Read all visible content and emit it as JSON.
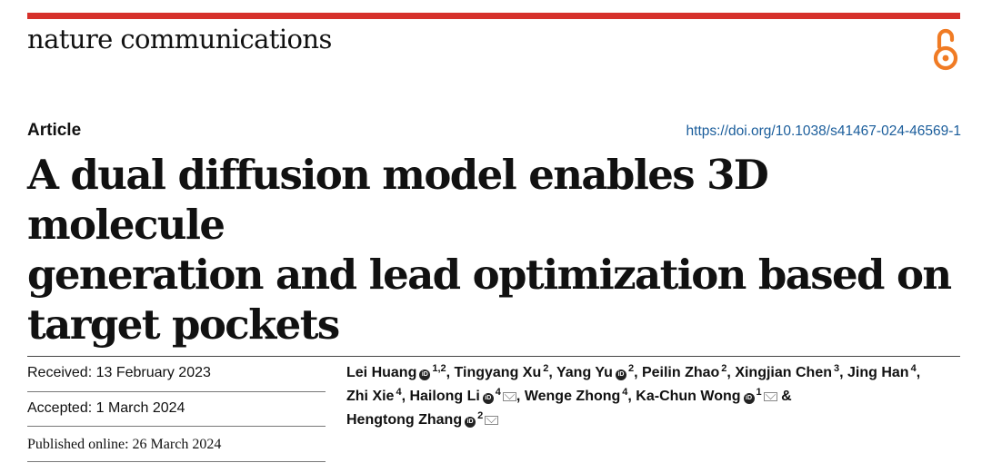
{
  "header": {
    "journal": "nature communications",
    "accent_color": "#d6312b",
    "open_access_icon": "open-access-icon",
    "open_access_color": "#f07b24"
  },
  "article": {
    "type": "Article",
    "doi": "https://doi.org/10.1038/s41467-024-46569-1",
    "title_lines": [
      "A dual diffusion model enables 3D molecule",
      "generation and lead optimization based on",
      "target pockets"
    ]
  },
  "dates": {
    "received": "Received: 13 February 2023",
    "accepted": "Accepted: 1 March 2024",
    "published": "Published online: 26 March 2024"
  },
  "authors": [
    {
      "name": "Lei Huang",
      "orcid": true,
      "aff": "1,2",
      "email": false
    },
    {
      "name": "Tingyang Xu",
      "orcid": false,
      "aff": "2",
      "email": false
    },
    {
      "name": "Yang Yu",
      "orcid": true,
      "aff": "2",
      "email": false
    },
    {
      "name": "Peilin Zhao",
      "orcid": false,
      "aff": "2",
      "email": false
    },
    {
      "name": "Xingjian Chen",
      "orcid": false,
      "aff": "3",
      "email": false
    },
    {
      "name": "Jing Han",
      "orcid": false,
      "aff": "4",
      "email": false
    },
    {
      "name": "Zhi Xie",
      "orcid": false,
      "aff": "4",
      "email": false
    },
    {
      "name": "Hailong Li",
      "orcid": true,
      "aff": "4",
      "email": true
    },
    {
      "name": "Wenge Zhong",
      "orcid": false,
      "aff": "4",
      "email": false
    },
    {
      "name": "Ka-Chun Wong",
      "orcid": true,
      "aff": "1",
      "email": true
    },
    {
      "name": "Hengtong Zhang",
      "orcid": true,
      "aff": "2",
      "email": true
    }
  ]
}
